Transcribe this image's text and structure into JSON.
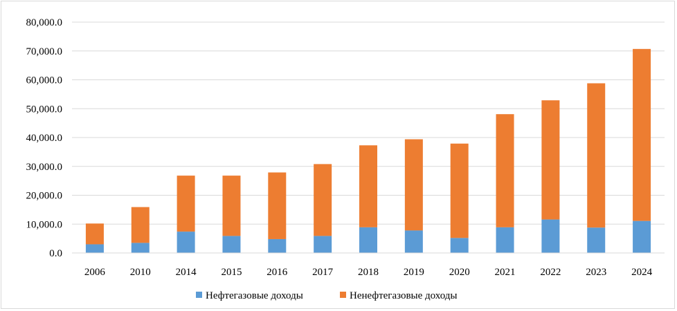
{
  "chart_data": {
    "type": "bar",
    "stacked": true,
    "categories": [
      "2006",
      "2010",
      "2014",
      "2015",
      "2016",
      "2017",
      "2018",
      "2019",
      "2020",
      "2021",
      "2022",
      "2023",
      "2024"
    ],
    "series": [
      {
        "name": "Нефтегазовые доходы",
        "color": "#5b9bd5",
        "values": [
          3000,
          3500,
          7400,
          5900,
          4800,
          5900,
          8900,
          7800,
          5200,
          8900,
          11600,
          8800,
          11100
        ]
      },
      {
        "name": "Ненефтегазовые доходы",
        "color": "#ed7d31",
        "values": [
          7200,
          12400,
          19400,
          20900,
          23100,
          24900,
          28400,
          31600,
          32700,
          39200,
          41300,
          50000,
          59600
        ]
      }
    ],
    "ylim": [
      0,
      80000
    ],
    "yticks": [
      "0.0",
      "10,000.0",
      "20,000.0",
      "30,000.0",
      "40,000.0",
      "50,000.0",
      "60,000.0",
      "70,000.0",
      "80,000.0"
    ],
    "grid": true,
    "legend": "bottom"
  }
}
